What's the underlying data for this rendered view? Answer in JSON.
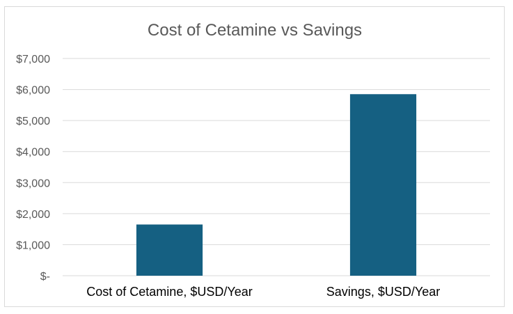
{
  "chart_data": {
    "type": "bar",
    "title": "Cost of Cetamine vs Savings",
    "categories": [
      "Cost of Cetamine, $USD/Year",
      "Savings, $USD/Year"
    ],
    "values": [
      1650,
      5850
    ],
    "ylim": [
      0,
      7000
    ],
    "yticks": [
      0,
      1000,
      2000,
      3000,
      4000,
      5000,
      6000,
      7000
    ],
    "ytick_labels": [
      "$-",
      "$1,000",
      "$2,000",
      "$3,000",
      "$4,000",
      "$5,000",
      "$6,000",
      "$7,000"
    ],
    "grid": true,
    "legend": "none",
    "bar_color": "#156082"
  }
}
